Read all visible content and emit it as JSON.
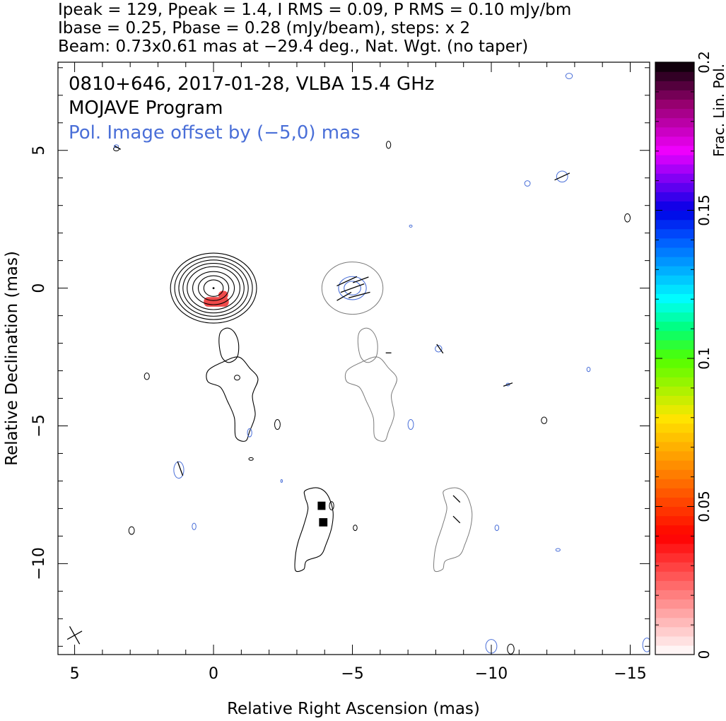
{
  "header": {
    "line1": "Ipeak = 129, Ppeak = 1.4, I RMS = 0.09, P RMS = 0.10 mJy/bm",
    "line2": "Ibase = 0.25, Pbase = 0.28 (mJy/beam), steps: x 2",
    "line3": "Beam: 0.73x0.61 mas at −29.4 deg., Nat. Wgt. (no taper)"
  },
  "chart_data": {
    "type": "contour map",
    "title": "0810+646, 2017-01-28, VLBA 15.4 GHz",
    "subtitle": "MOJAVE Program",
    "annotation": "Pol. Image offset by (−5,0) mas",
    "annotation_color": "#4a6fd8",
    "xlabel": "Relative Right Ascension (mas)",
    "ylabel": "Relative Declination (mas)",
    "xlim": [
      5.6,
      -15.7
    ],
    "ylim": [
      -13.3,
      8.2
    ],
    "x_ticks": [
      {
        "value": 5,
        "label": "5"
      },
      {
        "value": 0,
        "label": "0"
      },
      {
        "value": -5,
        "label": "−5"
      },
      {
        "value": -10,
        "label": "−10"
      },
      {
        "value": -15,
        "label": "−15"
      }
    ],
    "y_ticks": [
      {
        "value": 5,
        "label": "5"
      },
      {
        "value": 0,
        "label": "0"
      },
      {
        "value": -5,
        "label": "−5"
      },
      {
        "value": -10,
        "label": "−10"
      }
    ],
    "colorbar": {
      "label": "Frac. Lin. Pol.",
      "range": [
        0,
        0.2
      ],
      "ticks": [
        {
          "value": 0,
          "label": "0"
        },
        {
          "value": 0.05,
          "label": "0.05"
        },
        {
          "value": 0.1,
          "label": "0.1"
        },
        {
          "value": 0.15,
          "label": "0.15"
        },
        {
          "value": 0.2,
          "label": "0.2"
        }
      ]
    },
    "total_intensity": {
      "color": "#000000",
      "core": {
        "x": 0.0,
        "y": 0.0,
        "rx": [
          0.35,
          0.55,
          0.75,
          0.95,
          1.1,
          1.25,
          1.4,
          1.55
        ],
        "ry": [
          0.3,
          0.45,
          0.6,
          0.78,
          0.9,
          1.02,
          1.14,
          1.27
        ]
      },
      "polygons": [
        [
          [
            -0.25,
            -1.6
          ],
          [
            -0.5,
            -1.45
          ],
          [
            -0.75,
            -1.6
          ],
          [
            -0.9,
            -2.0
          ],
          [
            -0.85,
            -2.5
          ],
          [
            -0.55,
            -2.7
          ],
          [
            -0.3,
            -2.5
          ],
          [
            -0.2,
            -2.0
          ]
        ],
        [
          [
            -0.3,
            -2.7
          ],
          [
            -0.9,
            -2.5
          ],
          [
            -1.3,
            -2.9
          ],
          [
            -1.6,
            -3.3
          ],
          [
            -1.4,
            -3.9
          ],
          [
            -1.5,
            -4.6
          ],
          [
            -1.3,
            -5.2
          ],
          [
            -1.15,
            -5.55
          ],
          [
            -0.8,
            -5.4
          ],
          [
            -0.75,
            -4.7
          ],
          [
            -0.5,
            -4.1
          ],
          [
            -0.25,
            -3.6
          ],
          [
            0.2,
            -3.4
          ],
          [
            0.2,
            -3.0
          ]
        ],
        [
          [
            -3.3,
            -7.35
          ],
          [
            -3.75,
            -7.25
          ],
          [
            -4.1,
            -7.5
          ],
          [
            -4.3,
            -8.1
          ],
          [
            -4.25,
            -8.7
          ],
          [
            -4.05,
            -9.3
          ],
          [
            -3.85,
            -9.7
          ],
          [
            -3.35,
            -9.9
          ],
          [
            -3.25,
            -10.2
          ],
          [
            -2.95,
            -10.25
          ],
          [
            -2.95,
            -9.7
          ],
          [
            -3.05,
            -9.2
          ],
          [
            -3.25,
            -8.6
          ],
          [
            -3.4,
            -8.0
          ],
          [
            -3.3,
            -7.6
          ]
        ]
      ],
      "blobs": [
        {
          "x": 2.4,
          "y": -3.2,
          "rx": 0.09,
          "ry": 0.12
        },
        {
          "x": -0.85,
          "y": -3.25,
          "rx": 0.1,
          "ry": 0.09
        },
        {
          "x": -2.3,
          "y": -4.95,
          "rx": 0.1,
          "ry": 0.18
        },
        {
          "x": -1.35,
          "y": -6.2,
          "rx": 0.08,
          "ry": 0.05
        },
        {
          "x": -4.25,
          "y": -7.9,
          "rx": 0.08,
          "ry": 0.15
        },
        {
          "x": -5.1,
          "y": -8.7,
          "rx": 0.07,
          "ry": 0.1
        },
        {
          "x": 2.95,
          "y": -8.8,
          "rx": 0.1,
          "ry": 0.14
        },
        {
          "x": -11.9,
          "y": -4.8,
          "rx": 0.1,
          "ry": 0.12
        },
        {
          "x": -10.7,
          "y": -13.1,
          "rx": 0.12,
          "ry": 0.18
        },
        {
          "x": -14.9,
          "y": 2.55,
          "rx": 0.1,
          "ry": 0.15
        },
        {
          "x": -6.3,
          "y": 5.2,
          "rx": 0.08,
          "ry": 0.13
        },
        {
          "x": 3.5,
          "y": 5.05,
          "rx": 0.1,
          "ry": 0.07
        }
      ],
      "pol_fraction_patches": [
        {
          "x": -0.1,
          "y": -0.5,
          "w": 0.9,
          "h": 0.35
        },
        {
          "x": -0.35,
          "y": -0.25,
          "w": 0.35,
          "h": 0.3
        }
      ],
      "black_patches": [
        {
          "x": -3.75,
          "y": -7.75,
          "w": 0.28,
          "h": 0.3
        },
        {
          "x": -3.8,
          "y": -8.35,
          "w": 0.3,
          "h": 0.3
        }
      ]
    },
    "polarization": {
      "color": "#4a6fd8",
      "gray": "#7a7a7a",
      "core_outer": {
        "x": -5.0,
        "y": 0.0,
        "rx": 1.1,
        "ry": 0.95
      },
      "core_inner_rx": [
        0.3,
        0.5
      ],
      "core_inner_ry": [
        0.25,
        0.42
      ],
      "offset_x": -5.0,
      "blobs": [
        {
          "x": -12.55,
          "y": 4.05,
          "rx": 0.2,
          "ry": 0.2
        },
        {
          "x": -11.3,
          "y": 3.8,
          "rx": 0.1,
          "ry": 0.1
        },
        {
          "x": -12.8,
          "y": 7.7,
          "rx": 0.12,
          "ry": 0.1
        },
        {
          "x": -7.1,
          "y": 2.25,
          "rx": 0.05,
          "ry": 0.04
        },
        {
          "x": -8.1,
          "y": -2.2,
          "rx": 0.12,
          "ry": 0.12
        },
        {
          "x": 1.25,
          "y": -6.6,
          "rx": 0.18,
          "ry": 0.3
        },
        {
          "x": 0.7,
          "y": -8.65,
          "rx": 0.07,
          "ry": 0.12
        },
        {
          "x": -7.1,
          "y": -4.95,
          "rx": 0.1,
          "ry": 0.18
        },
        {
          "x": -10.2,
          "y": -8.7,
          "rx": 0.07,
          "ry": 0.1
        },
        {
          "x": -12.4,
          "y": -9.5,
          "rx": 0.08,
          "ry": 0.05
        },
        {
          "x": -13.5,
          "y": -2.95,
          "rx": 0.06,
          "ry": 0.08
        },
        {
          "x": -10.6,
          "y": -3.5,
          "rx": 0.06,
          "ry": 0.05
        },
        {
          "x": -2.45,
          "y": -7.0,
          "rx": 0.03,
          "ry": 0.05
        },
        {
          "x": -1.3,
          "y": -5.25,
          "rx": 0.08,
          "ry": 0.15
        },
        {
          "x": -10.0,
          "y": -13.0,
          "rx": 0.2,
          "ry": 0.25
        },
        {
          "x": -15.6,
          "y": -12.95,
          "rx": 0.15,
          "ry": 0.25
        },
        {
          "x": 3.5,
          "y": 5.15,
          "rx": 0.08,
          "ry": 0.05
        }
      ],
      "evpa_ticks": [
        {
          "x": -5.0,
          "y": 0.0,
          "angle": 20,
          "len": 0.9
        },
        {
          "x": -4.8,
          "y": 0.25,
          "angle": 25,
          "len": 0.8
        },
        {
          "x": -5.25,
          "y": -0.25,
          "angle": 15,
          "len": 0.8
        },
        {
          "x": -4.7,
          "y": -0.3,
          "angle": 30,
          "len": 0.6
        },
        {
          "x": -5.3,
          "y": 0.3,
          "angle": 20,
          "len": 0.6
        },
        {
          "x": -12.55,
          "y": 4.05,
          "angle": 25,
          "len": 0.6
        },
        {
          "x": -8.15,
          "y": -2.2,
          "angle": -55,
          "len": 0.4
        },
        {
          "x": -10.6,
          "y": -3.5,
          "angle": 20,
          "len": 0.35
        },
        {
          "x": 1.2,
          "y": -6.55,
          "angle": -70,
          "len": 0.55
        },
        {
          "x": -8.75,
          "y": -7.65,
          "angle": -45,
          "len": 0.35
        },
        {
          "x": -8.75,
          "y": -8.4,
          "angle": -45,
          "len": 0.35
        },
        {
          "x": 3.45,
          "y": 5.1,
          "angle": -30,
          "len": 0.25
        },
        {
          "x": -6.3,
          "y": -2.35,
          "angle": 0,
          "len": 0.2
        }
      ]
    },
    "beam": {
      "x": 5.0,
      "y": -12.6,
      "major": 0.73,
      "minor": 0.61,
      "angle": -29.4
    }
  }
}
